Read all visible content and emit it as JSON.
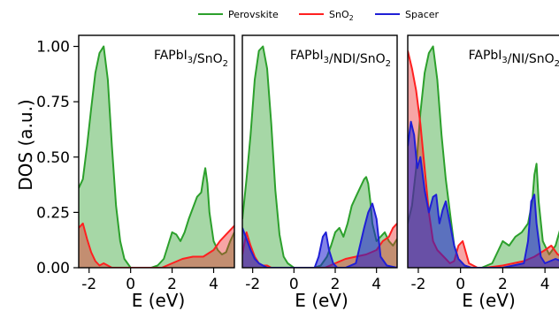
{
  "legend": [
    {
      "name": "Perovskite",
      "color": "#2ca02c"
    },
    {
      "name": "SnO",
      "sub": "2",
      "color": "#ff2020"
    },
    {
      "name": "Spacer",
      "color": "#1f1fd6"
    }
  ],
  "chart_data": [
    {
      "type": "area",
      "title_parts": [
        {
          "t": "FAPbI"
        },
        {
          "t": "3",
          "sub": true
        },
        {
          "t": "/SnO"
        },
        {
          "t": "2",
          "sub": true
        }
      ],
      "xlabel": "E (eV)",
      "ylabel": "DOS (a.u.)",
      "xlim": [
        -2.5,
        5
      ],
      "ylim": [
        0,
        1.05
      ],
      "xticks": [
        -2,
        0,
        2,
        4
      ],
      "yticks": [
        "0.00",
        "0.25",
        "0.50",
        "0.75",
        "1.00"
      ],
      "series": [
        {
          "key": "perovskite",
          "x": [
            -2.5,
            -2.3,
            -2.1,
            -1.9,
            -1.7,
            -1.5,
            -1.3,
            -1.1,
            -0.9,
            -0.7,
            -0.5,
            -0.3,
            0,
            0.5,
            1,
            1.3,
            1.6,
            1.8,
            2,
            2.2,
            2.4,
            2.6,
            2.8,
            3,
            3.2,
            3.4,
            3.5,
            3.6,
            3.7,
            3.8,
            4,
            4.2,
            4.4,
            4.6,
            4.8,
            5
          ],
          "y": [
            0.36,
            0.4,
            0.55,
            0.72,
            0.88,
            0.97,
            1.0,
            0.85,
            0.55,
            0.28,
            0.12,
            0.04,
            0,
            0,
            0,
            0.01,
            0.04,
            0.1,
            0.16,
            0.15,
            0.12,
            0.16,
            0.22,
            0.27,
            0.32,
            0.34,
            0.4,
            0.45,
            0.38,
            0.25,
            0.12,
            0.08,
            0.06,
            0.07,
            0.12,
            0.16
          ]
        },
        {
          "key": "sno2",
          "x": [
            -2.5,
            -2.3,
            -2.1,
            -1.9,
            -1.7,
            -1.5,
            -1.3,
            -1.1,
            -0.9,
            -0.7,
            -0.5,
            -0.3,
            0,
            0.5,
            1,
            1.5,
            2,
            2.5,
            3,
            3.5,
            4,
            4.3,
            4.6,
            4.8,
            5
          ],
          "y": [
            0.18,
            0.2,
            0.13,
            0.07,
            0.03,
            0.01,
            0.02,
            0.01,
            0,
            0,
            0,
            0,
            0,
            0,
            0,
            0,
            0.02,
            0.04,
            0.05,
            0.05,
            0.08,
            0.12,
            0.15,
            0.17,
            0.19
          ]
        }
      ]
    },
    {
      "type": "area",
      "title_parts": [
        {
          "t": "FAPbI"
        },
        {
          "t": "3",
          "sub": true
        },
        {
          "t": "/NDI/SnO"
        },
        {
          "t": "2",
          "sub": true
        }
      ],
      "xlabel": "E (eV)",
      "xlim": [
        -2.5,
        5
      ],
      "ylim": [
        0,
        1.05
      ],
      "xticks": [
        -2,
        0,
        2,
        4
      ],
      "series": [
        {
          "key": "perovskite",
          "x": [
            -2.5,
            -2.3,
            -2.1,
            -1.9,
            -1.7,
            -1.5,
            -1.3,
            -1.1,
            -0.9,
            -0.7,
            -0.5,
            -0.3,
            0,
            0.5,
            1,
            1.3,
            1.6,
            1.8,
            2,
            2.2,
            2.4,
            2.6,
            2.8,
            3,
            3.2,
            3.4,
            3.5,
            3.6,
            3.7,
            3.8,
            4,
            4.2,
            4.4,
            4.6,
            4.8,
            5
          ],
          "y": [
            0.22,
            0.4,
            0.6,
            0.85,
            0.98,
            1.0,
            0.9,
            0.65,
            0.35,
            0.15,
            0.05,
            0.02,
            0,
            0,
            0,
            0.01,
            0.05,
            0.1,
            0.16,
            0.18,
            0.14,
            0.2,
            0.28,
            0.32,
            0.36,
            0.4,
            0.41,
            0.38,
            0.3,
            0.2,
            0.12,
            0.14,
            0.16,
            0.12,
            0.1,
            0.13
          ]
        },
        {
          "key": "sno2",
          "x": [
            -2.5,
            -2.3,
            -2.1,
            -1.9,
            -1.7,
            -1.5,
            -1.3,
            -1.1,
            -0.9,
            -0.5,
            0,
            0.5,
            1,
            1.5,
            2,
            2.5,
            3,
            3.5,
            4,
            4.3,
            4.6,
            4.8,
            5
          ],
          "y": [
            0.06,
            0.16,
            0.1,
            0.05,
            0.02,
            0.01,
            0.01,
            0,
            0,
            0,
            0,
            0,
            0,
            0,
            0.02,
            0.04,
            0.05,
            0.06,
            0.08,
            0.12,
            0.14,
            0.18,
            0.2
          ]
        },
        {
          "key": "spacer",
          "x": [
            -2.5,
            -2.3,
            -2.1,
            -1.9,
            -1.7,
            -1.5,
            -1.3,
            -1.0,
            -0.5,
            0,
            0.5,
            1,
            1.2,
            1.4,
            1.55,
            1.7,
            1.9,
            2.1,
            2.5,
            3,
            3.2,
            3.4,
            3.6,
            3.8,
            4.0,
            4.2,
            4.5,
            5
          ],
          "y": [
            0.18,
            0.13,
            0.08,
            0.04,
            0.02,
            0.01,
            0,
            0,
            0,
            0,
            0,
            0,
            0.05,
            0.14,
            0.16,
            0.08,
            0.02,
            0,
            0,
            0.02,
            0.1,
            0.18,
            0.25,
            0.29,
            0.22,
            0.05,
            0.01,
            0
          ]
        }
      ]
    },
    {
      "type": "area",
      "title_parts": [
        {
          "t": "FAPbI"
        },
        {
          "t": "3",
          "sub": true
        },
        {
          "t": "/NI/SnO"
        },
        {
          "t": "2",
          "sub": true
        }
      ],
      "xlabel": "E (eV)",
      "xlim": [
        -2.5,
        5
      ],
      "ylim": [
        0,
        1.05
      ],
      "xticks": [
        -2,
        0,
        2,
        4
      ],
      "series": [
        {
          "key": "perovskite",
          "x": [
            -2.5,
            -2.3,
            -2.1,
            -1.9,
            -1.7,
            -1.5,
            -1.3,
            -1.1,
            -0.9,
            -0.7,
            -0.5,
            -0.3,
            -0.1,
            0.2,
            0.5,
            1,
            1.5,
            2,
            2.3,
            2.6,
            2.9,
            3.2,
            3.4,
            3.5,
            3.6,
            3.7,
            3.9,
            4.2,
            4.5,
            4.8,
            5
          ],
          "y": [
            0.2,
            0.28,
            0.45,
            0.7,
            0.88,
            0.97,
            1.0,
            0.85,
            0.6,
            0.4,
            0.25,
            0.1,
            0.04,
            0.01,
            0,
            0,
            0.02,
            0.12,
            0.1,
            0.14,
            0.16,
            0.2,
            0.3,
            0.42,
            0.47,
            0.3,
            0.12,
            0.06,
            0.1,
            0.2,
            0.16
          ]
        },
        {
          "key": "sno2",
          "x": [
            -2.5,
            -2.3,
            -2.1,
            -1.9,
            -1.7,
            -1.5,
            -1.3,
            -1.1,
            -0.9,
            -0.7,
            -0.5,
            -0.3,
            -0.1,
            0.1,
            0.4,
            0.8,
            1.2,
            2,
            2.5,
            3,
            3.5,
            4,
            4.3,
            4.6,
            4.8,
            5
          ],
          "y": [
            0.98,
            0.9,
            0.8,
            0.65,
            0.45,
            0.25,
            0.12,
            0.08,
            0.06,
            0.04,
            0.02,
            0.03,
            0.1,
            0.12,
            0.02,
            0,
            0,
            0.01,
            0.02,
            0.03,
            0.05,
            0.08,
            0.1,
            0.06,
            0.05,
            0.05
          ]
        },
        {
          "key": "spacer",
          "x": [
            -2.5,
            -2.35,
            -2.2,
            -2.05,
            -1.9,
            -1.7,
            -1.5,
            -1.3,
            -1.15,
            -1.0,
            -0.85,
            -0.7,
            -0.5,
            -0.3,
            -0.1,
            0.2,
            0.5,
            1,
            2,
            3,
            3.2,
            3.35,
            3.5,
            3.6,
            3.8,
            4,
            4.5,
            5
          ],
          "y": [
            0.55,
            0.66,
            0.6,
            0.45,
            0.5,
            0.35,
            0.25,
            0.32,
            0.33,
            0.2,
            0.26,
            0.3,
            0.2,
            0.1,
            0.04,
            0.01,
            0,
            0,
            0,
            0.02,
            0.12,
            0.3,
            0.33,
            0.2,
            0.05,
            0.02,
            0.04,
            0.02
          ]
        }
      ]
    }
  ]
}
